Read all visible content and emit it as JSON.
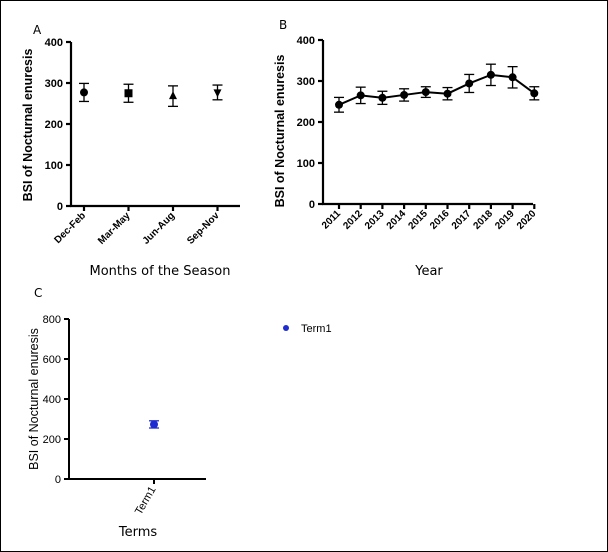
{
  "chart_data": [
    {
      "panel": "A",
      "type": "scatter",
      "ylabel": "BSI of Nocturnal enuresis",
      "xlabel": "Months of the Season",
      "categories": [
        "Dec-Feb",
        "Mar-May",
        "Jun-Aug",
        "Sep-Nov"
      ],
      "markers": [
        "circle",
        "square",
        "triangle-up",
        "triangle-down"
      ],
      "values": [
        277,
        275,
        268,
        277
      ],
      "error": [
        22,
        22,
        25,
        18
      ],
      "ylim": [
        0,
        400
      ],
      "yticks": [
        0,
        100,
        200,
        300,
        400
      ]
    },
    {
      "panel": "B",
      "type": "line",
      "ylabel": "BSI of Nocturnal enuresis",
      "xlabel": "Year",
      "categories": [
        "2011",
        "2012",
        "2013",
        "2014",
        "2015",
        "2016",
        "2017",
        "2018",
        "2019",
        "2020"
      ],
      "values": [
        242,
        265,
        259,
        266,
        273,
        269,
        294,
        315,
        309,
        270
      ],
      "error": [
        18,
        20,
        16,
        15,
        13,
        15,
        22,
        26,
        26,
        16
      ],
      "ylim": [
        0,
        400
      ],
      "yticks": [
        0,
        100,
        200,
        300,
        400
      ]
    },
    {
      "panel": "C",
      "type": "scatter",
      "ylabel": "BSI of Nocturnal enuresis",
      "xlabel": "Terms",
      "categories": [
        "Term1"
      ],
      "values": [
        273
      ],
      "error": [
        18
      ],
      "ylim": [
        0,
        800
      ],
      "yticks": [
        0,
        200,
        400,
        600,
        800
      ],
      "legend": [
        "Term1"
      ],
      "legend_position": "top-right",
      "color": "#1f2ccf"
    }
  ]
}
